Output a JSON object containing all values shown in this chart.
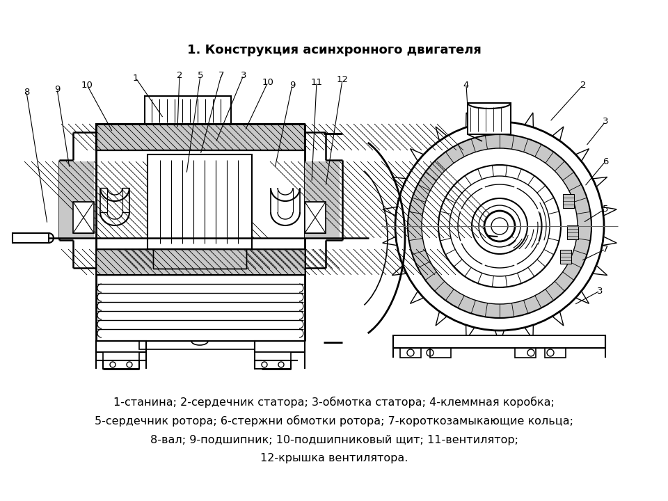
{
  "title": "1. Конструкция асинхронного двигателя",
  "title_fontsize": 13,
  "title_fontweight": "bold",
  "background_color": "#ffffff",
  "text_color": "#000000",
  "legend_lines": [
    "1-станина; 2-сердечник статора; 3-обмотка статора; 4-клеммная коробка;",
    "5-сердечник ротора; 6-стержни обмотки ротора; 7-короткозамыкающие кольца;",
    "8-вал; 9-подшипник; 10-подшипниковый щит; 11-вентилятор;",
    "12-крышка вентилятора."
  ],
  "legend_fontsize": 11.5,
  "fig_width": 9.6,
  "fig_height": 7.2,
  "dpi": 100,
  "left_labels": [
    [
      "8",
      38,
      132,
      68,
      322
    ],
    [
      "9",
      82,
      128,
      100,
      242
    ],
    [
      "10",
      125,
      122,
      162,
      190
    ],
    [
      "1",
      195,
      112,
      235,
      170
    ],
    [
      "2",
      258,
      108,
      255,
      185
    ],
    [
      "5",
      288,
      108,
      268,
      250
    ],
    [
      "7",
      318,
      108,
      288,
      222
    ],
    [
      "3",
      350,
      108,
      310,
      205
    ],
    [
      "10",
      385,
      118,
      352,
      188
    ],
    [
      "9",
      420,
      122,
      395,
      242
    ],
    [
      "11",
      455,
      118,
      448,
      262
    ],
    [
      "12",
      492,
      115,
      468,
      268
    ]
  ],
  "right_labels": [
    [
      "4",
      670,
      122,
      672,
      155
    ],
    [
      "2",
      838,
      122,
      790,
      175
    ],
    [
      "3",
      870,
      175,
      842,
      210
    ],
    [
      "6",
      870,
      232,
      840,
      268
    ],
    [
      "5",
      870,
      300,
      838,
      320
    ],
    [
      "7",
      870,
      358,
      835,
      375
    ],
    [
      "3",
      862,
      418,
      825,
      438
    ]
  ]
}
